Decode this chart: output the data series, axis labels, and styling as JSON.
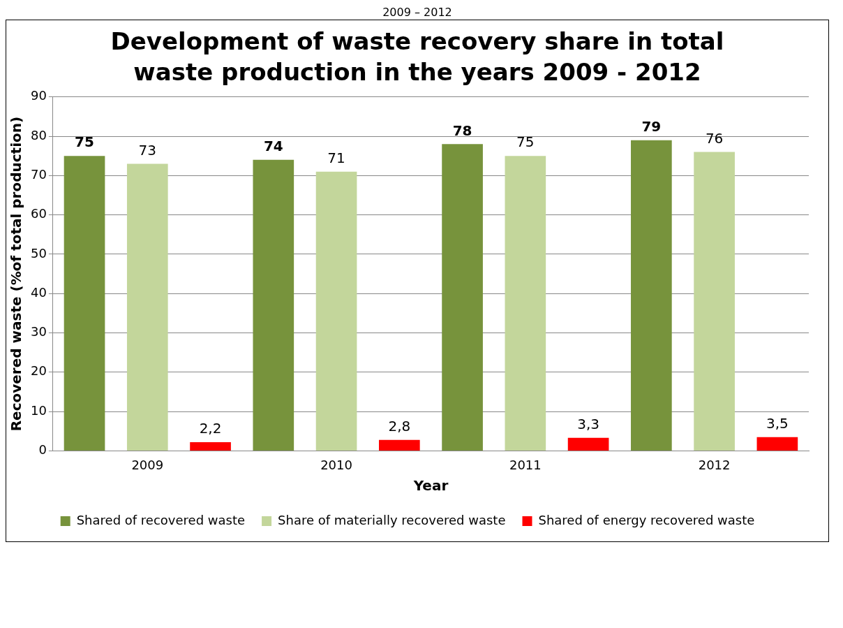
{
  "chart_data": {
    "type": "bar",
    "title": "Development of waste recovery share in total waste production in the years 2009 - 2012",
    "xlabel": "Year",
    "ylabel": "Recovered waste (%of total production)",
    "annotations": [
      "2009 – 2012"
    ],
    "categories": [
      "2009",
      "2010",
      "2011",
      "2012"
    ],
    "series": [
      {
        "name": "Shared of recovered waste",
        "color": "#77933c",
        "values": [
          75,
          74,
          78,
          79
        ],
        "value_labels": [
          "75",
          "74",
          "78",
          "79"
        ]
      },
      {
        "name": "Share of materially recovered waste",
        "color": "#c3d69b",
        "values": [
          73,
          71,
          75,
          76
        ],
        "value_labels": [
          "73",
          "71",
          "75",
          "76"
        ]
      },
      {
        "name": "Shared of energy recovered waste",
        "color": "#ff0000",
        "values": [
          2.2,
          2.8,
          3.3,
          3.5
        ],
        "value_labels": [
          "2,2",
          "2,8",
          "3,3",
          "3,5"
        ]
      }
    ],
    "ylim": [
      0,
      90
    ],
    "yticks": [
      0,
      10,
      20,
      30,
      40,
      50,
      60,
      70,
      80,
      90
    ],
    "grid": "y",
    "legend": "bottom"
  }
}
